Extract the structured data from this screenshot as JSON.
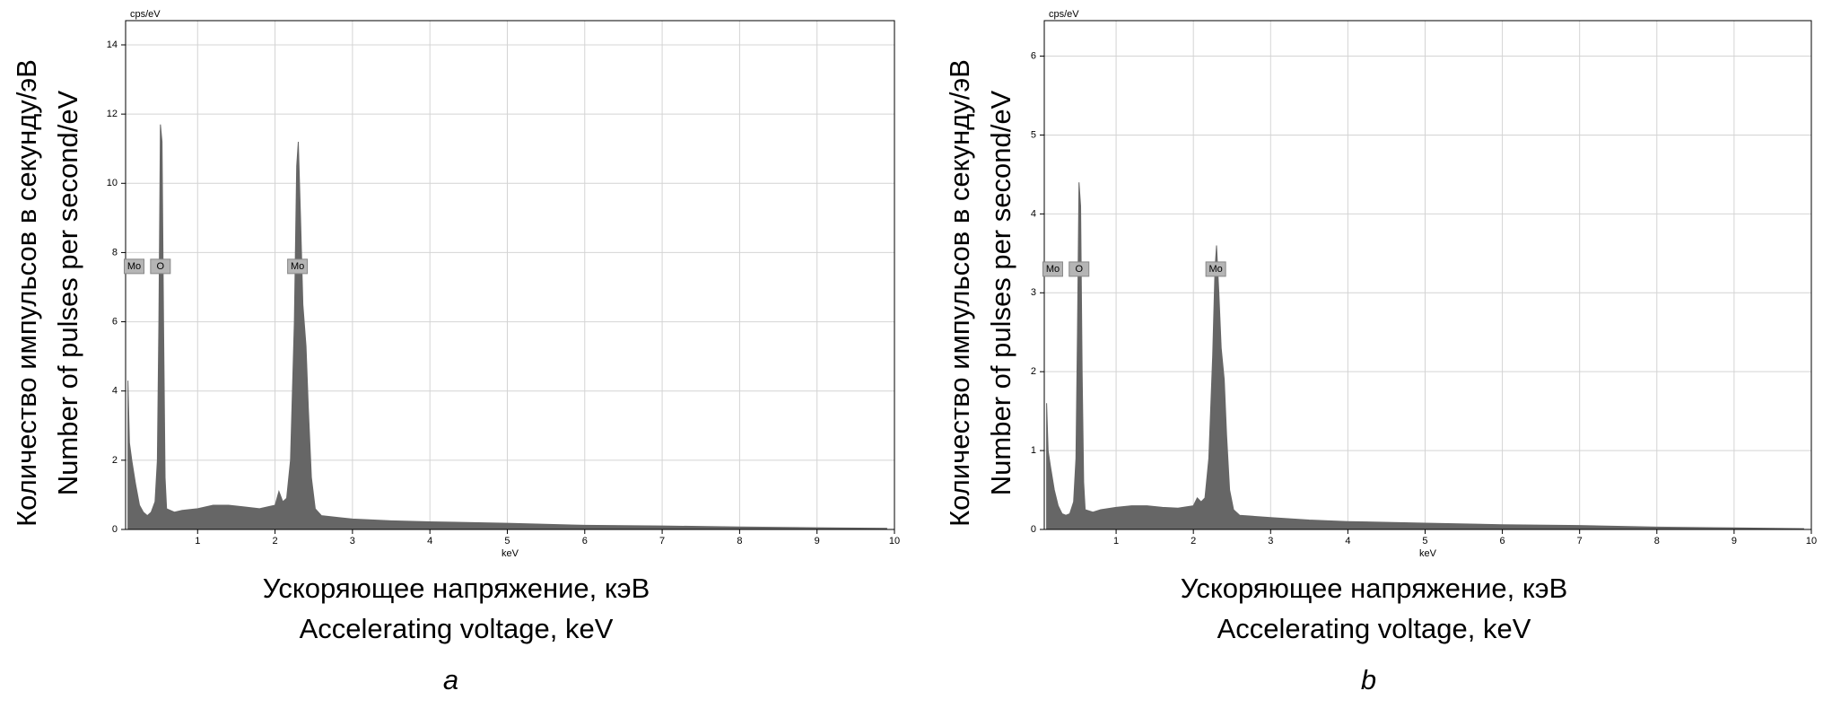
{
  "chart_data": [
    {
      "type": "area",
      "panel_label": "a",
      "y_unit": "cps/eV",
      "x_unit": "keV",
      "ylabel": [
        "Количество импульсов в секунду/эВ",
        "Number of pulses per second/eV"
      ],
      "xlabel": [
        "Ускоряющее напряжение, кэВ",
        "Accelerating voltage, keV"
      ],
      "color": "#666666",
      "grid": true,
      "xlim": [
        0.07,
        10
      ],
      "ylim": [
        0,
        14.7
      ],
      "xticks": [
        1,
        2,
        3,
        4,
        5,
        6,
        7,
        8,
        9,
        10
      ],
      "yticks": [
        0,
        2,
        4,
        6,
        8,
        10,
        12,
        14
      ],
      "x": [
        0.1,
        0.12,
        0.15,
        0.2,
        0.25,
        0.3,
        0.35,
        0.4,
        0.45,
        0.48,
        0.5,
        0.52,
        0.54,
        0.56,
        0.58,
        0.6,
        0.7,
        0.8,
        1.0,
        1.2,
        1.4,
        1.6,
        1.8,
        2.0,
        2.05,
        2.1,
        2.15,
        2.2,
        2.25,
        2.28,
        2.3,
        2.33,
        2.36,
        2.4,
        2.43,
        2.47,
        2.52,
        2.6,
        3.0,
        3.5,
        4.0,
        5.0,
        6.0,
        7.0,
        8.0,
        9.0,
        9.9
      ],
      "values": [
        4.3,
        2.5,
        2.0,
        1.3,
        0.7,
        0.5,
        0.4,
        0.5,
        0.8,
        2.0,
        6.0,
        11.7,
        11.2,
        6.0,
        1.5,
        0.6,
        0.5,
        0.55,
        0.6,
        0.7,
        0.7,
        0.65,
        0.6,
        0.7,
        1.1,
        0.8,
        0.9,
        2.0,
        6.0,
        10.5,
        11.2,
        9.0,
        6.5,
        5.3,
        3.5,
        1.5,
        0.6,
        0.4,
        0.3,
        0.25,
        0.22,
        0.18,
        0.12,
        0.1,
        0.07,
        0.05,
        0.03
      ],
      "annotations": [
        {
          "text": "Mo",
          "x": 0.18,
          "y": 7.6
        },
        {
          "text": "O",
          "x": 0.52,
          "y": 7.6
        },
        {
          "text": "Mo",
          "x": 2.29,
          "y": 7.6
        }
      ]
    },
    {
      "type": "area",
      "panel_label": "b",
      "y_unit": "cps/eV",
      "x_unit": "keV",
      "ylabel": [
        "Количество импульсов в секунду/эВ",
        "Number of pulses per second/eV"
      ],
      "xlabel": [
        "Ускоряющее напряжение, кэВ",
        "Accelerating voltage, keV"
      ],
      "color": "#666666",
      "grid": true,
      "xlim": [
        0.07,
        10
      ],
      "ylim": [
        0,
        6.45
      ],
      "xticks": [
        1,
        2,
        3,
        4,
        5,
        6,
        7,
        8,
        9,
        10
      ],
      "yticks": [
        0,
        1,
        2,
        3,
        4,
        5,
        6
      ],
      "x": [
        0.1,
        0.12,
        0.15,
        0.2,
        0.25,
        0.3,
        0.35,
        0.4,
        0.45,
        0.48,
        0.5,
        0.52,
        0.54,
        0.56,
        0.58,
        0.6,
        0.7,
        0.8,
        1.0,
        1.2,
        1.4,
        1.6,
        1.8,
        2.0,
        2.05,
        2.1,
        2.15,
        2.2,
        2.25,
        2.28,
        2.3,
        2.33,
        2.36,
        2.4,
        2.43,
        2.47,
        2.52,
        2.6,
        3.0,
        3.5,
        4.0,
        5.0,
        6.0,
        7.0,
        8.0,
        9.0,
        9.9
      ],
      "values": [
        1.6,
        1.0,
        0.8,
        0.5,
        0.3,
        0.2,
        0.18,
        0.2,
        0.35,
        0.9,
        2.5,
        4.4,
        4.1,
        2.0,
        0.6,
        0.25,
        0.22,
        0.25,
        0.28,
        0.3,
        0.3,
        0.28,
        0.27,
        0.3,
        0.4,
        0.35,
        0.4,
        0.9,
        2.2,
        3.3,
        3.6,
        3.0,
        2.3,
        1.9,
        1.2,
        0.5,
        0.25,
        0.18,
        0.15,
        0.12,
        0.1,
        0.08,
        0.06,
        0.05,
        0.03,
        0.02,
        0.01
      ],
      "annotations": [
        {
          "text": "Mo",
          "x": 0.18,
          "y": 3.3
        },
        {
          "text": "O",
          "x": 0.52,
          "y": 3.3
        },
        {
          "text": "Mo",
          "x": 2.29,
          "y": 3.3
        }
      ]
    }
  ]
}
